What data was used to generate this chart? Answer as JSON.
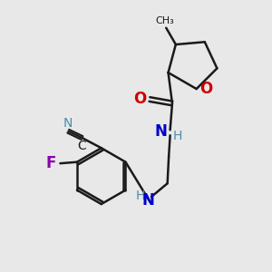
{
  "background_color": "#e8e8e8",
  "bond_color": "#1a1a1a",
  "O_color": "#cc0000",
  "N_color": "#0000cc",
  "N2_color": "#4a8fa8",
  "F_color": "#8800aa",
  "line_width": 1.8,
  "figsize": [
    3.0,
    3.0
  ],
  "dpi": 100,
  "xlim": [
    0,
    10
  ],
  "ylim": [
    0,
    10
  ]
}
